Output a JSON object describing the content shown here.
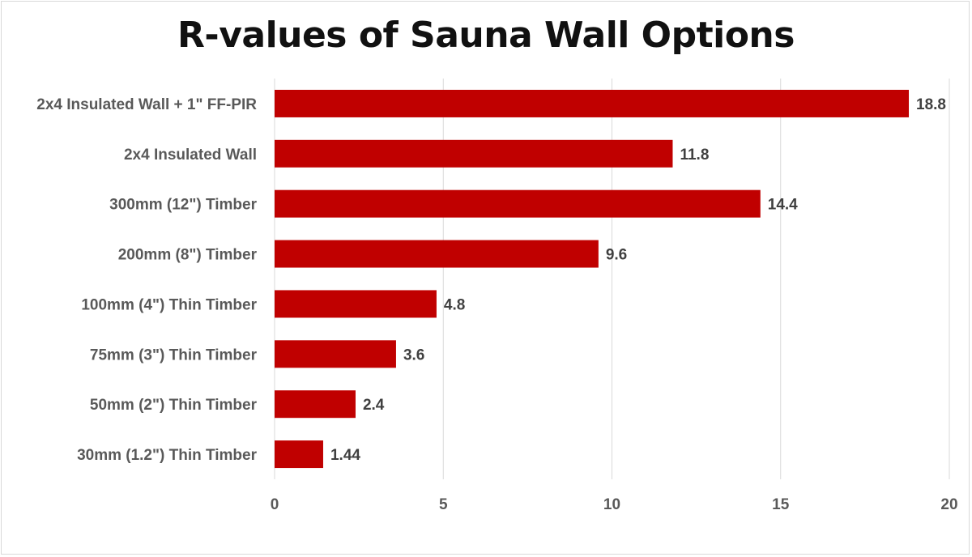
{
  "chart_data": {
    "type": "bar",
    "orientation": "horizontal",
    "title": "R-values of Sauna Wall Options",
    "xlabel": "",
    "ylabel": "",
    "categories": [
      "2x4 Insulated Wall + 1\" FF-PIR",
      "2x4 Insulated Wall",
      "300mm (12\") Timber",
      "200mm (8\") Timber",
      "100mm (4\") Thin Timber",
      "75mm (3\") Thin Timber",
      "50mm (2\") Thin Timber",
      "30mm (1.2\") Thin Timber"
    ],
    "values": [
      18.8,
      11.8,
      14.4,
      9.6,
      4.8,
      3.6,
      2.4,
      1.44
    ],
    "data_labels": [
      "18.8",
      "11.8",
      "14.4",
      "9.6",
      "4.8",
      "3.6",
      "2.4",
      "1.44"
    ],
    "xlim": [
      0,
      20
    ],
    "x_ticks": [
      0,
      5,
      10,
      15,
      20
    ],
    "x_tick_labels": [
      "0",
      "5",
      "10",
      "15",
      "20"
    ],
    "grid": "vertical",
    "legend": "none",
    "bar_color": "#c00000"
  }
}
